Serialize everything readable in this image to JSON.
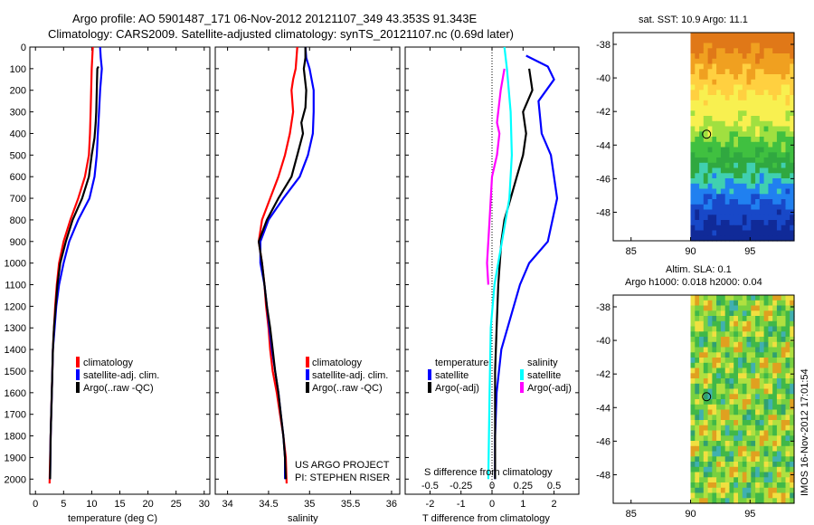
{
  "header": {
    "title_line1": "Argo profile: AO 5901487_171 06-Nov-2012 20121107_349 43.353S 91.343E",
    "title_line2": "Climatology: CARS2009. Satellite-adjusted climatology: synTS_20121107.nc (0.69d later)"
  },
  "chart_data": [
    {
      "type": "line",
      "id": "temperature",
      "xlabel": "temperature (deg C)",
      "ylabel": "",
      "xlim": [
        -1,
        31
      ],
      "ylim": [
        2070,
        0
      ],
      "xticks": [
        "0",
        "5",
        "10",
        "15",
        "20",
        "25",
        "30"
      ],
      "yticks": [
        "0",
        "100",
        "200",
        "300",
        "400",
        "500",
        "600",
        "700",
        "800",
        "900",
        "1000",
        "1100",
        "1200",
        "1300",
        "1400",
        "1500",
        "1600",
        "1700",
        "1800",
        "1900",
        "2000"
      ],
      "legend": [
        "climatology",
        "satellite-adj. clim.",
        "Argo(..raw -QC)"
      ],
      "series": [
        {
          "name": "climatology",
          "color": "#ff0000",
          "points": [
            [
              10.2,
              0
            ],
            [
              10.1,
              50
            ],
            [
              10.0,
              100
            ],
            [
              9.9,
              200
            ],
            [
              9.8,
              300
            ],
            [
              9.7,
              400
            ],
            [
              9.5,
              500
            ],
            [
              8.8,
              600
            ],
            [
              7.6,
              700
            ],
            [
              6.2,
              800
            ],
            [
              5.0,
              900
            ],
            [
              4.2,
              1000
            ],
            [
              3.8,
              1100
            ],
            [
              3.5,
              1200
            ],
            [
              3.3,
              1300
            ],
            [
              3.1,
              1400
            ],
            [
              3.0,
              1500
            ],
            [
              2.8,
              1700
            ],
            [
              2.6,
              1900
            ],
            [
              2.5,
              2020
            ]
          ]
        },
        {
          "name": "satellite-adj. clim.",
          "color": "#0000ff",
          "points": [
            [
              11.5,
              0
            ],
            [
              11.6,
              50
            ],
            [
              11.8,
              100
            ],
            [
              11.5,
              200
            ],
            [
              11.3,
              300
            ],
            [
              11.1,
              400
            ],
            [
              10.9,
              500
            ],
            [
              10.5,
              600
            ],
            [
              9.6,
              700
            ],
            [
              7.6,
              800
            ],
            [
              6.0,
              900
            ],
            [
              5.0,
              1000
            ],
            [
              4.2,
              1100
            ],
            [
              3.7,
              1200
            ],
            [
              3.4,
              1300
            ],
            [
              3.1,
              1400
            ],
            [
              2.9,
              1600
            ],
            [
              2.7,
              1800
            ],
            [
              2.6,
              2000
            ]
          ]
        },
        {
          "name": "Argo(..raw -QC)",
          "color": "#000000",
          "points": [
            [
              11.2,
              90
            ],
            [
              11.0,
              100
            ],
            [
              10.9,
              200
            ],
            [
              10.8,
              300
            ],
            [
              10.7,
              350
            ],
            [
              10.5,
              420
            ],
            [
              10.0,
              500
            ],
            [
              9.5,
              600
            ],
            [
              8.3,
              700
            ],
            [
              6.6,
              800
            ],
            [
              5.4,
              900
            ],
            [
              4.4,
              1000
            ],
            [
              3.9,
              1100
            ],
            [
              3.6,
              1200
            ],
            [
              3.3,
              1300
            ],
            [
              3.1,
              1400
            ],
            [
              2.9,
              1600
            ],
            [
              2.7,
              1800
            ],
            [
              2.6,
              2000
            ]
          ]
        }
      ]
    },
    {
      "type": "line",
      "id": "salinity",
      "xlabel": "salinity",
      "xlim": [
        33.85,
        36.1
      ],
      "ylim": [
        2070,
        0
      ],
      "xticks": [
        "34",
        "34.5",
        "35",
        "35.5",
        "36"
      ],
      "legend": [
        "climatology",
        "satellite-adj. clim.",
        "Argo(..raw -QC)"
      ],
      "series": [
        {
          "name": "climatology",
          "color": "#ff0000",
          "points": [
            [
              34.85,
              0
            ],
            [
              34.83,
              100
            ],
            [
              34.8,
              150
            ],
            [
              34.78,
              200
            ],
            [
              34.8,
              300
            ],
            [
              34.76,
              400
            ],
            [
              34.7,
              500
            ],
            [
              34.62,
              600
            ],
            [
              34.52,
              700
            ],
            [
              34.42,
              800
            ],
            [
              34.38,
              900
            ],
            [
              34.42,
              1000
            ],
            [
              34.45,
              1100
            ],
            [
              34.47,
              1200
            ],
            [
              34.5,
              1300
            ],
            [
              34.52,
              1400
            ],
            [
              34.55,
              1500
            ],
            [
              34.6,
              1600
            ],
            [
              34.64,
              1700
            ],
            [
              34.68,
              1800
            ],
            [
              34.71,
              1900
            ],
            [
              34.72,
              2020
            ]
          ]
        },
        {
          "name": "satellite-adj. clim.",
          "color": "#0000ff",
          "points": [
            [
              34.95,
              0
            ],
            [
              34.96,
              50
            ],
            [
              35.0,
              100
            ],
            [
              35.05,
              200
            ],
            [
              35.05,
              300
            ],
            [
              35.04,
              400
            ],
            [
              34.98,
              500
            ],
            [
              34.88,
              600
            ],
            [
              34.68,
              700
            ],
            [
              34.5,
              800
            ],
            [
              34.4,
              900
            ],
            [
              34.4,
              1000
            ],
            [
              34.45,
              1100
            ],
            [
              34.48,
              1200
            ],
            [
              34.51,
              1300
            ],
            [
              34.54,
              1400
            ],
            [
              34.58,
              1500
            ],
            [
              34.62,
              1600
            ],
            [
              34.65,
              1700
            ],
            [
              34.68,
              1800
            ],
            [
              34.7,
              1900
            ],
            [
              34.7,
              2000
            ]
          ]
        },
        {
          "name": "Argo(..raw -QC)",
          "color": "#000000",
          "points": [
            [
              34.95,
              0
            ],
            [
              34.95,
              50
            ],
            [
              34.93,
              100
            ],
            [
              34.96,
              200
            ],
            [
              34.95,
              280
            ],
            [
              34.9,
              350
            ],
            [
              34.92,
              400
            ],
            [
              34.85,
              500
            ],
            [
              34.78,
              600
            ],
            [
              34.62,
              700
            ],
            [
              34.48,
              800
            ],
            [
              34.38,
              900
            ],
            [
              34.42,
              1000
            ],
            [
              34.45,
              1100
            ],
            [
              34.48,
              1200
            ],
            [
              34.52,
              1300
            ],
            [
              34.55,
              1400
            ],
            [
              34.58,
              1500
            ],
            [
              34.62,
              1600
            ],
            [
              34.65,
              1700
            ],
            [
              34.68,
              1800
            ],
            [
              34.7,
              1900
            ],
            [
              34.71,
              2000
            ]
          ]
        }
      ],
      "annotations": [
        "US ARGO PROJECT",
        "PI: STEPHEN RISER"
      ]
    },
    {
      "type": "line",
      "id": "differences",
      "xlabel": "T difference from climatology",
      "xlabel_top": "S difference from climatology",
      "xlim": [
        -2.8,
        2.8
      ],
      "xticks": [
        "-2",
        "-1",
        "0",
        "1",
        "2"
      ],
      "xticks_top": [
        "-0.5",
        "-0.25",
        "0",
        "0.25",
        "0.5"
      ],
      "legend_titles": [
        "temperature",
        "salinity"
      ],
      "legend": [
        "satellite",
        "Argo(-adj)",
        "satellite",
        "Argo(-adj)"
      ],
      "series": [
        {
          "name": "temperature satellite",
          "color": "#0000ff",
          "points": [
            [
              1.1,
              40
            ],
            [
              1.8,
              90
            ],
            [
              2.0,
              150
            ],
            [
              1.5,
              250
            ],
            [
              1.6,
              400
            ],
            [
              1.9,
              500
            ],
            [
              2.1,
              700
            ],
            [
              1.8,
              900
            ],
            [
              1.2,
              1000
            ],
            [
              0.9,
              1100
            ],
            [
              0.6,
              1250
            ],
            [
              0.3,
              1400
            ],
            [
              0.15,
              1600
            ],
            [
              0.1,
              1800
            ],
            [
              0.1,
              2000
            ]
          ]
        },
        {
          "name": "temperature Argo(-adj)",
          "color": "#000000",
          "points": [
            [
              1.2,
              100
            ],
            [
              1.3,
              200
            ],
            [
              1.0,
              300
            ],
            [
              1.1,
              400
            ],
            [
              1.0,
              500
            ],
            [
              0.8,
              600
            ],
            [
              0.6,
              700
            ],
            [
              0.4,
              800
            ],
            [
              0.3,
              900
            ],
            [
              0.25,
              1000
            ],
            [
              0.2,
              1100
            ],
            [
              0.15,
              1300
            ],
            [
              0.1,
              1500
            ],
            [
              0.1,
              1700
            ],
            [
              0.1,
              2000
            ]
          ]
        },
        {
          "name": "salinity satellite",
          "color": "#00ffff",
          "points": [
            [
              0.1,
              0
            ],
            [
              0.12,
              100
            ],
            [
              0.15,
              300
            ],
            [
              0.16,
              500
            ],
            [
              0.14,
              700
            ],
            [
              0.08,
              900
            ],
            [
              0.02,
              1100
            ],
            [
              -0.01,
              1300
            ],
            [
              -0.02,
              1600
            ],
            [
              -0.03,
              2000
            ]
          ]
        },
        {
          "name": "salinity Argo(-adj)",
          "color": "#ff00ff",
          "points": [
            [
              0.1,
              100
            ],
            [
              0.07,
              200
            ],
            [
              0.04,
              350
            ],
            [
              0.06,
              400
            ],
            [
              0.04,
              500
            ],
            [
              0.0,
              600
            ],
            [
              -0.02,
              800
            ],
            [
              -0.04,
              1000
            ],
            [
              -0.03,
              1100
            ]
          ]
        }
      ]
    }
  ],
  "maps": {
    "sst_title": "sat. SST: 10.9 Argo: 11.1",
    "sla_title_line1": "Altim. SLA: 0.1",
    "sla_title_line2": "Argo h1000: 0.018 h2000: 0.04",
    "yticks": [
      "-38",
      "-40",
      "-42",
      "-44",
      "-46",
      "-48"
    ],
    "xticks": [
      "85",
      "90",
      "95"
    ],
    "argo_lon": 91.343,
    "argo_lat": -43.353
  },
  "side_stamp": "IMOS 16-Nov-2012 17:01:54"
}
